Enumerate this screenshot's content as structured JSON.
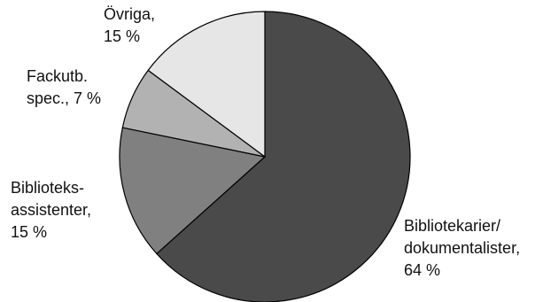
{
  "chart_data": {
    "type": "pie",
    "title": "",
    "slices": [
      {
        "label": "Bibliotekarier/ dokumentalister",
        "label_lines": [
          "Bibliotekarier/",
          "dokumentalister,",
          "64 %"
        ],
        "value": 64,
        "color": "#4a4a4a"
      },
      {
        "label": "Biblioteks-assistenter",
        "label_lines": [
          "Biblioteks-",
          "assistenter,",
          "15 %"
        ],
        "value": 15,
        "color": "#808080"
      },
      {
        "label": "Fackutb. spec.",
        "label_lines": [
          "Fackutb.",
          "spec., 7 %"
        ],
        "value": 7,
        "color": "#b2b2b2"
      },
      {
        "label": "Övriga",
        "label_lines": [
          "Övriga,",
          "15 %"
        ],
        "value": 15,
        "color": "#e6e6e6"
      }
    ],
    "start": "12 o'clock",
    "direction": "clockwise",
    "legend": "none"
  }
}
